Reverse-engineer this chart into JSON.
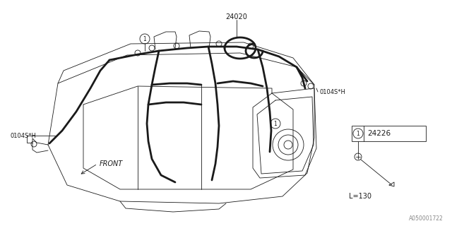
{
  "bg_color": "#ffffff",
  "line_color": "#1a1a1a",
  "thin_line": 0.6,
  "thick_line": 2.0,
  "label_24020": "24020",
  "label_0104SH_left": "0104S*H",
  "label_0104SH_right": "0104S*H",
  "label_24226": "24226",
  "label_L130": "L=130",
  "label_FRONT": "FRONT",
  "watermark": "A050001722",
  "circle_label": "1"
}
